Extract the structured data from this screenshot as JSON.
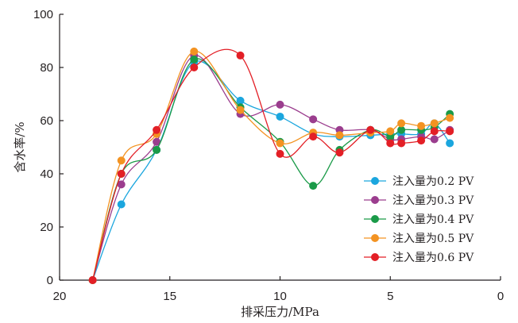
{
  "chart_data": {
    "type": "line",
    "xlabel": "排采压力/MPa",
    "ylabel": "含水率/%",
    "xlim": [
      20,
      0
    ],
    "ylim": [
      0,
      100
    ],
    "xticks": [
      20,
      15,
      10,
      5,
      0
    ],
    "yticks": [
      0,
      20,
      40,
      60,
      80,
      100
    ],
    "x_reversed": true,
    "legend_position": "bottom-right",
    "grid": false,
    "series": [
      {
        "name": "注入量为0.2 PV",
        "color": "#1ba6de",
        "points": [
          [
            18.5,
            0
          ],
          [
            17.2,
            28.5
          ],
          [
            15.6,
            49
          ],
          [
            13.9,
            82
          ],
          [
            11.8,
            67.5
          ],
          [
            10,
            61.5
          ],
          [
            8.5,
            55
          ],
          [
            7.3,
            54
          ],
          [
            5.9,
            54.5
          ],
          [
            5,
            55
          ],
          [
            4.5,
            55
          ],
          [
            3.6,
            55
          ],
          [
            3.0,
            59
          ],
          [
            2.3,
            51.5
          ]
        ]
      },
      {
        "name": "注入量为0.3 PV",
        "color": "#9b3d8e",
        "points": [
          [
            18.5,
            0
          ],
          [
            17.2,
            36
          ],
          [
            15.6,
            52
          ],
          [
            13.9,
            84.5
          ],
          [
            11.8,
            62.5
          ],
          [
            10,
            66
          ],
          [
            8.5,
            60.5
          ],
          [
            7.3,
            56.5
          ],
          [
            5.9,
            56.5
          ],
          [
            5,
            53
          ],
          [
            4.5,
            53
          ],
          [
            3.6,
            54
          ],
          [
            3.0,
            53
          ],
          [
            2.3,
            56.5
          ]
        ]
      },
      {
        "name": "注入量为0.4 PV",
        "color": "#1a9a48",
        "points": [
          [
            18.5,
            0
          ],
          [
            17.2,
            40
          ],
          [
            15.6,
            49
          ],
          [
            13.9,
            83
          ],
          [
            11.8,
            65
          ],
          [
            10,
            52
          ],
          [
            8.5,
            35.5
          ],
          [
            7.3,
            49
          ],
          [
            5.9,
            56.5
          ],
          [
            5,
            54
          ],
          [
            4.5,
            56.5
          ],
          [
            3.6,
            56.5
          ],
          [
            3.0,
            57.5
          ],
          [
            2.3,
            62.5
          ]
        ]
      },
      {
        "name": "注入量为0.5 PV",
        "color": "#f39322",
        "points": [
          [
            18.5,
            0
          ],
          [
            17.2,
            45
          ],
          [
            15.6,
            55
          ],
          [
            13.9,
            86
          ],
          [
            11.8,
            64
          ],
          [
            10,
            51.5
          ],
          [
            8.5,
            55.5
          ],
          [
            7.3,
            54.5
          ],
          [
            5.9,
            55.5
          ],
          [
            5,
            56
          ],
          [
            4.5,
            59
          ],
          [
            3.6,
            58
          ],
          [
            3.0,
            59
          ],
          [
            2.3,
            61
          ]
        ]
      },
      {
        "name": "注入量为0.6 PV",
        "color": "#e31f26",
        "points": [
          [
            18.5,
            0
          ],
          [
            17.2,
            40
          ],
          [
            15.6,
            56.5
          ],
          [
            13.9,
            80
          ],
          [
            11.8,
            84.5
          ],
          [
            10,
            47.5
          ],
          [
            8.5,
            54
          ],
          [
            7.3,
            48
          ],
          [
            5.9,
            56.5
          ],
          [
            5,
            51.5
          ],
          [
            4.5,
            51.5
          ],
          [
            3.6,
            52.5
          ],
          [
            3.0,
            56
          ],
          [
            2.3,
            56
          ]
        ]
      }
    ]
  }
}
